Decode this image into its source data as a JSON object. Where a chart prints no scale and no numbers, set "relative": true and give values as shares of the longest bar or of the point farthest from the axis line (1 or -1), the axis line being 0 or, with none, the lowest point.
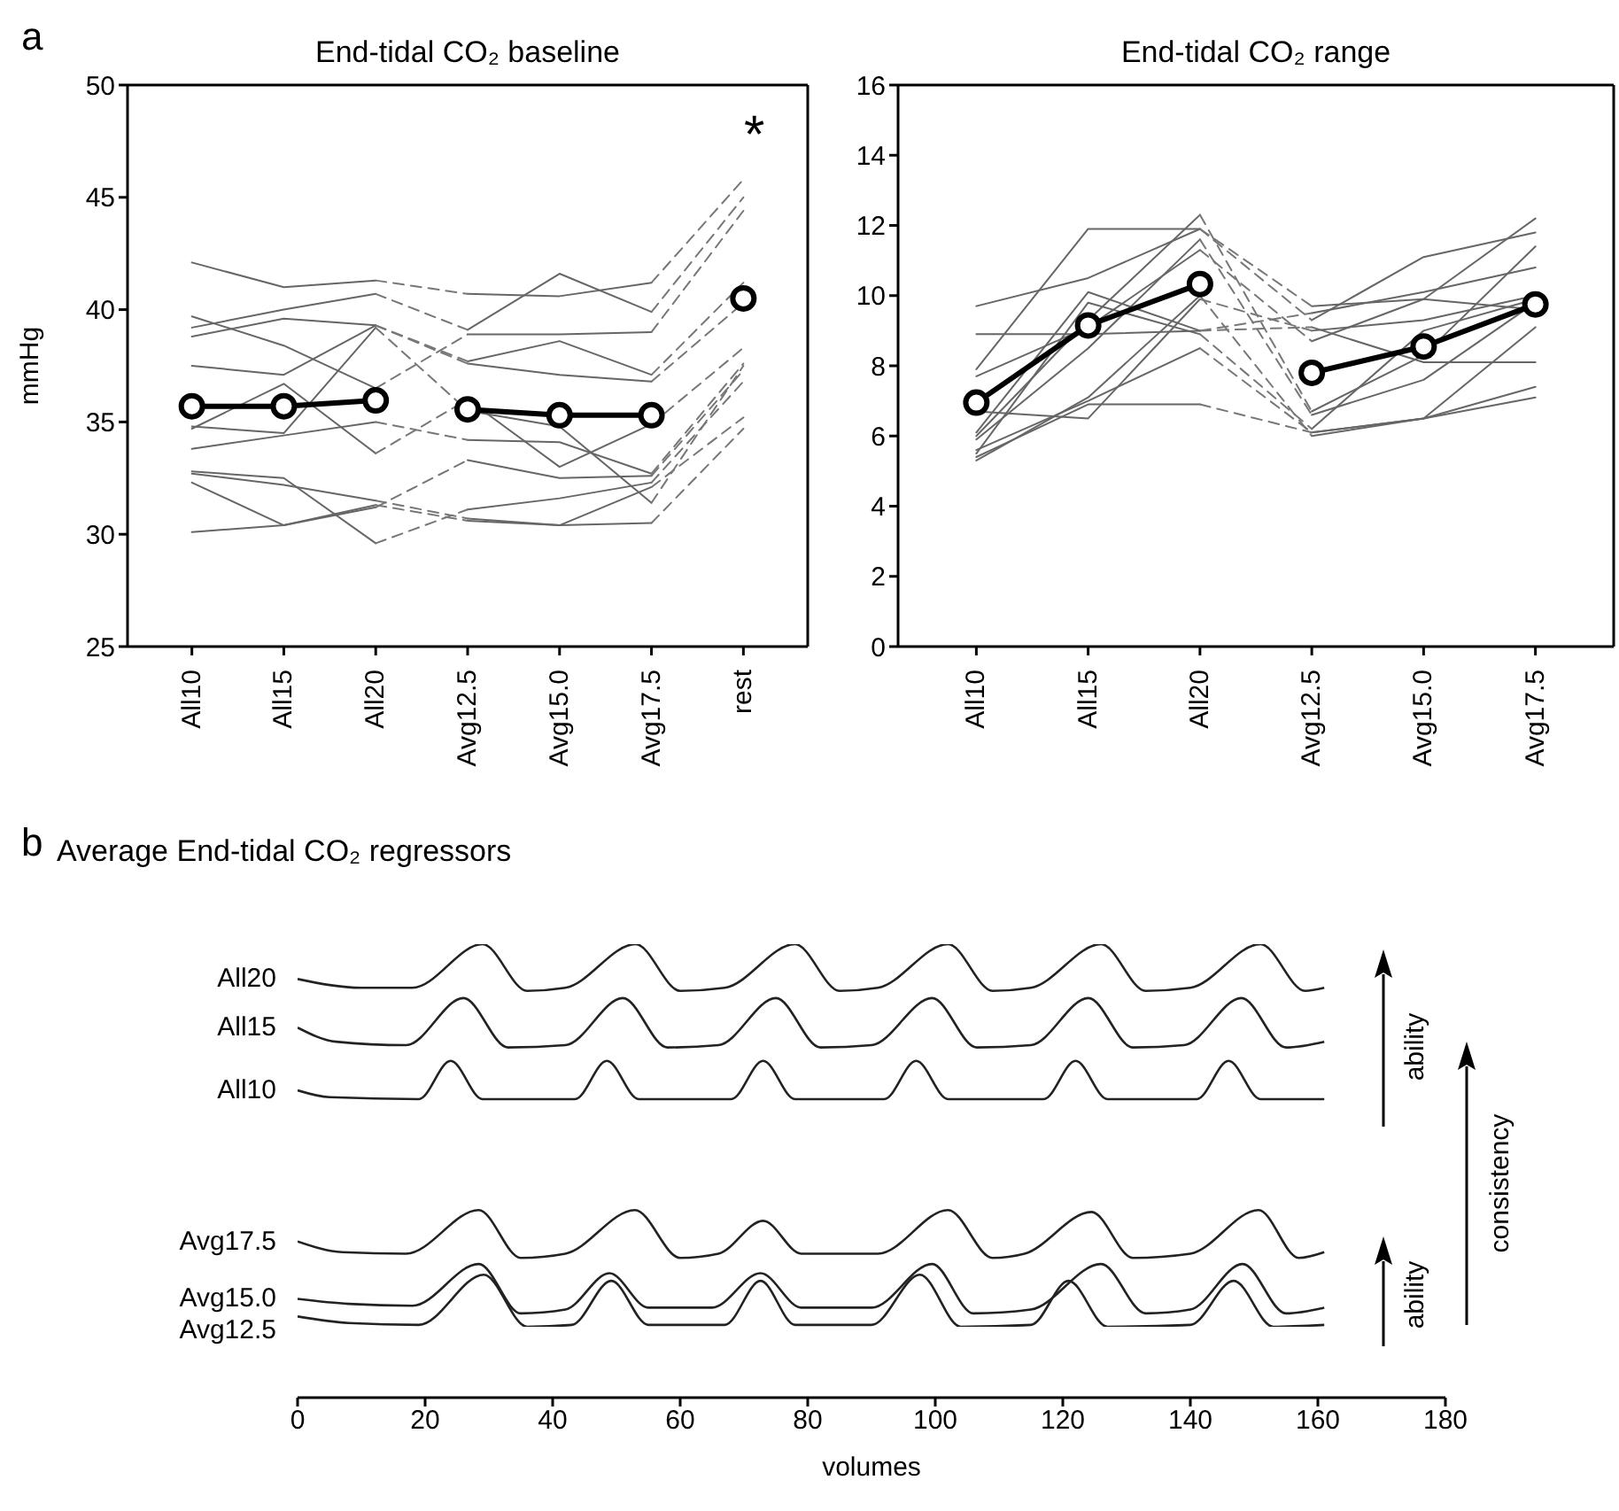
{
  "chart_data": [
    {
      "type": "line",
      "title": "End-tidal CO₂ baseline",
      "ylabel": "mmHg",
      "categories": [
        "All10",
        "All15",
        "All20",
        "Avg12.5",
        "Avg15.0",
        "Avg17.5",
        "rest"
      ],
      "ylim": [
        25,
        50
      ],
      "yticks": [
        25,
        30,
        35,
        40,
        45,
        50
      ],
      "grid": false,
      "legend": false,
      "marker": "none",
      "annotations": [
        "a",
        "*"
      ],
      "series": [
        {
          "color": "#666666",
          "values": [
            42.1,
            41.0,
            41.3,
            null,
            null,
            null,
            null
          ]
        },
        {
          "color": "#666666",
          "values": [
            null,
            null,
            null,
            40.7,
            40.6,
            41.2,
            null
          ]
        },
        {
          "color": "#777777",
          "line_style": "dashed",
          "values": [
            null,
            null,
            41.3,
            40.7,
            null,
            41.2,
            45.8
          ]
        },
        {
          "color": "#666666",
          "values": [
            39.2,
            40.0,
            40.7,
            null,
            null,
            null,
            null
          ]
        },
        {
          "color": "#666666",
          "values": [
            null,
            null,
            null,
            39.1,
            41.6,
            39.9,
            null
          ]
        },
        {
          "color": "#777777",
          "line_style": "dashed",
          "values": [
            null,
            null,
            40.7,
            39.1,
            null,
            39.9,
            45.0
          ]
        },
        {
          "color": "#666666",
          "values": [
            39.7,
            38.4,
            36.5,
            null,
            null,
            null,
            null
          ]
        },
        {
          "color": "#666666",
          "values": [
            null,
            null,
            null,
            38.9,
            38.9,
            39.0,
            null
          ]
        },
        {
          "color": "#777777",
          "line_style": "dashed",
          "values": [
            null,
            null,
            36.5,
            38.9,
            null,
            39.0,
            44.4
          ]
        },
        {
          "color": "#666666",
          "values": [
            38.8,
            39.6,
            39.3,
            null,
            null,
            null,
            null
          ]
        },
        {
          "color": "#666666",
          "values": [
            null,
            null,
            null,
            37.7,
            38.6,
            37.1,
            null
          ]
        },
        {
          "color": "#777777",
          "line_style": "dashed",
          "values": [
            null,
            null,
            39.3,
            37.7,
            null,
            37.1,
            41.2
          ]
        },
        {
          "color": "#666666",
          "values": [
            37.5,
            37.1,
            39.3,
            null,
            null,
            null,
            null
          ]
        },
        {
          "color": "#666666",
          "values": [
            null,
            null,
            null,
            37.6,
            37.1,
            36.8,
            null
          ]
        },
        {
          "color": "#777777",
          "line_style": "dashed",
          "values": [
            null,
            null,
            39.3,
            37.6,
            null,
            36.8,
            40.3
          ]
        },
        {
          "color": "#666666",
          "values": [
            34.7,
            36.7,
            33.6,
            null,
            null,
            null,
            null
          ]
        },
        {
          "color": "#666666",
          "values": [
            null,
            null,
            null,
            36.0,
            33.0,
            34.9,
            null
          ]
        },
        {
          "color": "#777777",
          "line_style": "dashed",
          "values": [
            null,
            null,
            33.6,
            36.0,
            null,
            34.9,
            38.3
          ]
        },
        {
          "color": "#666666",
          "values": [
            34.8,
            34.5,
            39.2,
            null,
            null,
            null,
            null
          ]
        },
        {
          "color": "#666666",
          "values": [
            null,
            null,
            null,
            35.5,
            34.8,
            31.4,
            null
          ]
        },
        {
          "color": "#777777",
          "line_style": "dashed",
          "values": [
            null,
            null,
            39.2,
            35.5,
            null,
            31.4,
            37.5
          ]
        },
        {
          "color": "#666666",
          "values": [
            33.8,
            34.4,
            35.0,
            null,
            null,
            null,
            null
          ]
        },
        {
          "color": "#666666",
          "values": [
            null,
            null,
            null,
            34.2,
            34.1,
            32.7,
            null
          ]
        },
        {
          "color": "#777777",
          "line_style": "dashed",
          "values": [
            null,
            null,
            35.0,
            34.2,
            null,
            32.7,
            37.6
          ]
        },
        {
          "color": "#666666",
          "values": [
            32.8,
            32.5,
            29.6,
            null,
            null,
            null,
            null
          ]
        },
        {
          "color": "#666666",
          "values": [
            null,
            null,
            null,
            31.1,
            31.6,
            32.3,
            null
          ]
        },
        {
          "color": "#777777",
          "line_style": "dashed",
          "values": [
            null,
            null,
            29.6,
            31.1,
            null,
            32.3,
            36.8
          ]
        },
        {
          "color": "#666666",
          "values": [
            32.7,
            32.2,
            31.5,
            null,
            null,
            null,
            null
          ]
        },
        {
          "color": "#666666",
          "values": [
            null,
            null,
            null,
            30.7,
            30.4,
            32.1,
            null
          ]
        },
        {
          "color": "#777777",
          "line_style": "dashed",
          "values": [
            null,
            null,
            31.5,
            30.7,
            null,
            32.1,
            35.2
          ]
        },
        {
          "color": "#666666",
          "values": [
            32.3,
            30.4,
            31.3,
            null,
            null,
            null,
            null
          ]
        },
        {
          "color": "#666666",
          "values": [
            null,
            null,
            null,
            30.6,
            30.4,
            30.5,
            null
          ]
        },
        {
          "color": "#777777",
          "line_style": "dashed",
          "values": [
            null,
            null,
            31.3,
            30.6,
            null,
            30.5,
            34.7
          ]
        },
        {
          "color": "#666666",
          "values": [
            30.1,
            30.4,
            31.2,
            null,
            null,
            null,
            null
          ]
        },
        {
          "color": "#666666",
          "values": [
            null,
            null,
            null,
            33.3,
            32.5,
            32.6,
            null
          ]
        },
        {
          "color": "#777777",
          "line_style": "dashed",
          "values": [
            null,
            null,
            31.2,
            33.3,
            null,
            32.6,
            37.3
          ]
        },
        {
          "color": "#000000",
          "marker": "circle",
          "values": [
            35.7,
            35.7,
            35.96,
            null,
            null,
            null,
            null
          ]
        },
        {
          "color": "#000000",
          "marker": "circle",
          "values": [
            null,
            null,
            null,
            35.56,
            35.3,
            35.3,
            null
          ]
        },
        {
          "color": "#000000",
          "marker": "circle",
          "values": [
            null,
            null,
            null,
            null,
            null,
            null,
            40.5
          ]
        }
      ]
    },
    {
      "type": "line",
      "title": "End-tidal CO₂ range",
      "categories": [
        "All10",
        "All15",
        "All20",
        "Avg12.5",
        "Avg15.0",
        "Avg17.5"
      ],
      "ylim": [
        0,
        16
      ],
      "yticks": [
        0,
        2,
        4,
        6,
        8,
        10,
        12,
        14,
        16
      ],
      "grid": false,
      "legend": false,
      "marker": "none",
      "series": [
        {
          "color": "#666666",
          "values": [
            9.7,
            10.5,
            11.9,
            null,
            null,
            null
          ]
        },
        {
          "color": "#666666",
          "values": [
            null,
            null,
            null,
            9.7,
            9.9,
            9.6
          ]
        },
        {
          "color": "#777777",
          "line_style": "dashed",
          "values": [
            null,
            null,
            11.9,
            9.7,
            null,
            null
          ]
        },
        {
          "color": "#666666",
          "values": [
            8.9,
            8.9,
            9.0,
            null,
            null,
            null
          ]
        },
        {
          "color": "#666666",
          "values": [
            null,
            null,
            null,
            9.5,
            10.1,
            10.8
          ]
        },
        {
          "color": "#777777",
          "line_style": "dashed",
          "values": [
            null,
            null,
            9.0,
            9.5,
            null,
            null
          ]
        },
        {
          "color": "#666666",
          "values": [
            7.9,
            11.9,
            11.9,
            null,
            null,
            null
          ]
        },
        {
          "color": "#666666",
          "values": [
            null,
            null,
            null,
            9.3,
            11.1,
            11.8
          ]
        },
        {
          "color": "#777777",
          "line_style": "dashed",
          "values": [
            null,
            null,
            11.9,
            9.3,
            null,
            null
          ]
        },
        {
          "color": "#666666",
          "values": [
            7.7,
            9.1,
            11.3,
            null,
            null,
            null
          ]
        },
        {
          "color": "#666666",
          "values": [
            null,
            null,
            null,
            8.7,
            9.9,
            12.2
          ]
        },
        {
          "color": "#777777",
          "line_style": "dashed",
          "values": [
            null,
            null,
            11.3,
            8.7,
            null,
            null
          ]
        },
        {
          "color": "#666666",
          "values": [
            6.7,
            6.5,
            9.9,
            null,
            null,
            null
          ]
        },
        {
          "color": "#666666",
          "values": [
            null,
            null,
            null,
            9.0,
            9.3,
            10.0
          ]
        },
        {
          "color": "#777777",
          "line_style": "dashed",
          "values": [
            null,
            null,
            9.9,
            9.0,
            null,
            null
          ]
        },
        {
          "color": "#666666",
          "values": [
            6.1,
            10.1,
            9.0,
            null,
            null,
            null
          ]
        },
        {
          "color": "#666666",
          "values": [
            null,
            null,
            null,
            9.1,
            8.1,
            8.1
          ]
        },
        {
          "color": "#777777",
          "line_style": "dashed",
          "values": [
            null,
            null,
            9.0,
            9.1,
            null,
            null
          ]
        },
        {
          "color": "#666666",
          "values": [
            6.0,
            9.3,
            12.3,
            null,
            null,
            null
          ]
        },
        {
          "color": "#666666",
          "values": [
            null,
            null,
            null,
            6.7,
            8.3,
            11.4
          ]
        },
        {
          "color": "#777777",
          "line_style": "dashed",
          "values": [
            null,
            null,
            12.3,
            6.7,
            null,
            null
          ]
        },
        {
          "color": "#666666",
          "values": [
            5.9,
            8.5,
            11.6,
            null,
            null,
            null
          ]
        },
        {
          "color": "#666666",
          "values": [
            null,
            null,
            null,
            6.6,
            7.6,
            9.8
          ]
        },
        {
          "color": "#777777",
          "line_style": "dashed",
          "values": [
            null,
            null,
            11.6,
            6.6,
            null,
            null
          ]
        },
        {
          "color": "#666666",
          "values": [
            5.6,
            7.0,
            8.5,
            null,
            null,
            null
          ]
        },
        {
          "color": "#666666",
          "values": [
            null,
            null,
            null,
            6.1,
            6.5,
            9.1
          ]
        },
        {
          "color": "#777777",
          "line_style": "dashed",
          "values": [
            null,
            null,
            8.5,
            6.1,
            null,
            null
          ]
        },
        {
          "color": "#666666",
          "values": [
            5.5,
            9.8,
            8.9,
            null,
            null,
            null
          ]
        },
        {
          "color": "#666666",
          "values": [
            null,
            null,
            null,
            6.2,
            9.0,
            9.9
          ]
        },
        {
          "color": "#777777",
          "line_style": "dashed",
          "values": [
            null,
            null,
            8.9,
            6.2,
            null,
            null
          ]
        },
        {
          "color": "#666666",
          "values": [
            5.4,
            6.9,
            6.9,
            null,
            null,
            null
          ]
        },
        {
          "color": "#666666",
          "values": [
            null,
            null,
            null,
            6.1,
            6.5,
            7.4
          ]
        },
        {
          "color": "#777777",
          "line_style": "dashed",
          "values": [
            null,
            null,
            6.9,
            6.1,
            null,
            null
          ]
        },
        {
          "color": "#666666",
          "values": [
            5.3,
            7.1,
            10.0,
            null,
            null,
            null
          ]
        },
        {
          "color": "#666666",
          "values": [
            null,
            null,
            null,
            6.0,
            6.5,
            7.1
          ]
        },
        {
          "color": "#777777",
          "line_style": "dashed",
          "values": [
            null,
            null,
            10.0,
            6.0,
            null,
            null
          ]
        },
        {
          "color": "#000000",
          "marker": "circle",
          "values": [
            6.95,
            9.15,
            10.33,
            null,
            null,
            null
          ]
        },
        {
          "color": "#000000",
          "marker": "circle",
          "values": [
            null,
            null,
            null,
            7.8,
            8.55,
            9.75
          ]
        }
      ]
    },
    {
      "type": "line",
      "title": "Average End-tidal CO₂ regressors",
      "xlabel": "volumes",
      "relative": true,
      "xlim": [
        0,
        180
      ],
      "xticks": [
        0,
        20,
        40,
        60,
        80,
        100,
        120,
        140,
        160,
        180
      ],
      "grid": false,
      "legend": false,
      "marker": "none",
      "annotations": [
        "b",
        "ability",
        "ability",
        "consistency"
      ],
      "series": [
        {
          "name": "All20",
          "color": "#222222",
          "x": [
            0,
            10,
            18,
            29,
            36,
            42,
            53,
            60,
            67,
            78,
            85,
            91,
            102,
            109,
            115,
            126,
            133,
            140,
            151,
            158,
            161
          ],
          "values": [
            0.909,
            0.886,
            0.886,
            1.0,
            0.878,
            0.886,
            1.0,
            0.878,
            0.886,
            1.0,
            0.878,
            0.886,
            1.0,
            0.878,
            0.886,
            1.0,
            0.878,
            0.886,
            1.0,
            0.878,
            0.886
          ]
        },
        {
          "name": "All15",
          "color": "#222222",
          "x": [
            0,
            6,
            17,
            26,
            33,
            42,
            51,
            58,
            66,
            75,
            82,
            90,
            99.5,
            106.5,
            115,
            124,
            131,
            139,
            148,
            155,
            161
          ],
          "values": [
            0.782,
            0.745,
            0.736,
            0.859,
            0.73,
            0.736,
            0.859,
            0.73,
            0.736,
            0.859,
            0.73,
            0.736,
            0.859,
            0.73,
            0.736,
            0.859,
            0.73,
            0.736,
            0.859,
            0.73,
            0.745
          ]
        },
        {
          "name": "All10",
          "color": "#222222",
          "x": [
            0,
            5,
            19,
            24,
            29,
            43.5,
            48.5,
            53.5,
            68,
            73,
            78,
            92,
            97,
            102,
            117,
            122,
            127,
            141,
            146,
            151,
            161
          ],
          "values": [
            0.618,
            0.6,
            0.595,
            0.695,
            0.595,
            0.595,
            0.695,
            0.595,
            0.595,
            0.695,
            0.595,
            0.595,
            0.695,
            0.595,
            0.595,
            0.695,
            0.595,
            0.595,
            0.695,
            0.595,
            0.595
          ]
        },
        {
          "name": "Avg17.5",
          "color": "#222222",
          "x": [
            0,
            7,
            17,
            28.4,
            35,
            42,
            52.9,
            60,
            66,
            73,
            79,
            91,
            102,
            109,
            114,
            124.5,
            131,
            140,
            150.7,
            157,
            161
          ],
          "values": [
            0.223,
            0.195,
            0.191,
            0.305,
            0.18,
            0.191,
            0.305,
            0.18,
            0.191,
            0.277,
            0.191,
            0.191,
            0.305,
            0.18,
            0.191,
            0.3,
            0.18,
            0.191,
            0.305,
            0.18,
            0.195
          ]
        },
        {
          "name": "Avg15.0",
          "color": "#222222",
          "x": [
            0,
            8,
            18,
            28.4,
            35,
            42,
            48.9,
            55,
            65,
            72.6,
            79,
            90,
            99.5,
            106,
            115,
            126,
            133,
            140,
            148.2,
            155,
            161
          ],
          "values": [
            0.073,
            0.06,
            0.055,
            0.164,
            0.035,
            0.045,
            0.14,
            0.05,
            0.05,
            0.14,
            0.05,
            0.05,
            0.164,
            0.035,
            0.045,
            0.164,
            0.035,
            0.045,
            0.164,
            0.035,
            0.05
          ]
        },
        {
          "name": "Avg12.5",
          "color": "#222222",
          "x": [
            0,
            8,
            19,
            29.2,
            36,
            43,
            49.2,
            55,
            67,
            72.6,
            78,
            90,
            97.6,
            104,
            115,
            120.9,
            127,
            140,
            146.8,
            153,
            161
          ],
          "values": [
            0.027,
            0.01,
            0.005,
            0.136,
            0.0,
            0.005,
            0.12,
            0.005,
            0.005,
            0.12,
            0.005,
            0.005,
            0.136,
            0.0,
            0.005,
            0.12,
            0.0,
            0.005,
            0.12,
            0.0,
            0.005
          ]
        }
      ]
    }
  ]
}
